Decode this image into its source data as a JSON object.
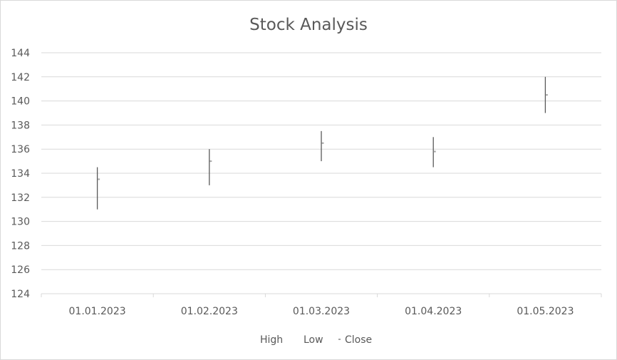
{
  "chart_data": {
    "type": "stock",
    "title": "Stock Analysis",
    "categories": [
      "01.01.2023",
      "01.02.2023",
      "01.03.2023",
      "01.04.2023",
      "01.05.2023"
    ],
    "series": [
      {
        "name": "High",
        "values": [
          134.5,
          136,
          137.5,
          137,
          142
        ]
      },
      {
        "name": "Low",
        "values": [
          131,
          133,
          135,
          134.5,
          139
        ]
      },
      {
        "name": "Close",
        "values": [
          133.5,
          135,
          136.5,
          135.8,
          140.5
        ]
      }
    ],
    "ylim": [
      124,
      144
    ],
    "yticks": [
      "124",
      "126",
      "128",
      "130",
      "132",
      "134",
      "136",
      "138",
      "140",
      "142",
      "144"
    ],
    "grid": true,
    "legend_position": "bottom",
    "colors": {
      "grid": "#d9d9d9",
      "axis": "#d9d9d9",
      "hilo": "#595959",
      "close_marker": "#a5a5a5",
      "text": "#595959"
    }
  }
}
